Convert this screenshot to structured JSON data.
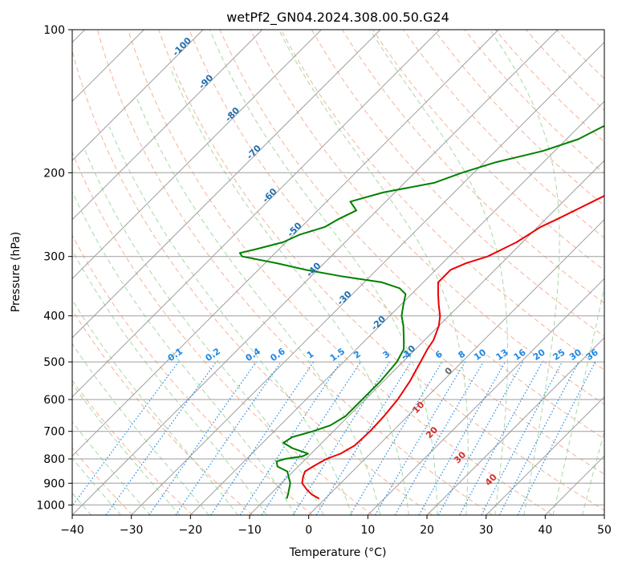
{
  "chart_data": {
    "type": "line",
    "title": "wetPf2_GN04.2024.308.00.50.G24",
    "xlabel": "Temperature (°C)",
    "ylabel": "Pressure (hPa)",
    "xlim": [
      -40,
      50
    ],
    "ylim": [
      1050,
      100
    ],
    "y_scale": "log",
    "x_ticks": [
      -40,
      -30,
      -20,
      -10,
      0,
      10,
      20,
      30,
      40,
      50
    ],
    "y_ticks": [
      100,
      200,
      300,
      400,
      500,
      600,
      700,
      800,
      900,
      1000
    ],
    "grid": true,
    "skew": true,
    "colors": {
      "temperature": "#ee0000",
      "dewpoint": "#008000",
      "isotherm_label": "#1f6fb0",
      "mixing_ratio": "#1e88e5",
      "dry_adiabat": "#f4a582",
      "moist_adiabat": "#8fcf8f",
      "theta_e_label": "#d32f2f"
    },
    "series": [
      {
        "key": "temperature",
        "pressure": [
          970,
          950,
          930,
          900,
          870,
          850,
          830,
          800,
          780,
          750,
          700,
          650,
          600,
          550,
          500,
          470,
          450,
          420,
          400,
          380,
          360,
          340,
          320,
          310,
          300,
          280,
          260,
          250,
          230,
          200,
          180,
          160,
          150,
          140,
          130,
          120,
          110,
          100
        ],
        "temperature": [
          -1.0,
          -3.0,
          -4.5,
          -6.5,
          -7.5,
          -8.0,
          -7.5,
          -6.5,
          -5.0,
          -4.0,
          -3.8,
          -4.0,
          -4.5,
          -5.5,
          -7.0,
          -8.0,
          -8.5,
          -10.0,
          -11.5,
          -13.5,
          -15.5,
          -17.5,
          -17.5,
          -16.0,
          -13.5,
          -11.0,
          -9.5,
          -8.0,
          -5.0,
          0.0,
          3.0,
          8.0,
          10.5,
          13.5,
          16.5,
          20.0,
          25.5,
          31.0
        ]
      },
      {
        "key": "dewpoint",
        "pressure": [
          970,
          950,
          900,
          870,
          850,
          830,
          810,
          800,
          790,
          780,
          760,
          740,
          720,
          700,
          680,
          650,
          600,
          550,
          500,
          470,
          450,
          420,
          400,
          380,
          360,
          350,
          340,
          330,
          320,
          310,
          300,
          295,
          290,
          280,
          270,
          260,
          250,
          240,
          230,
          220,
          210,
          200,
          190,
          180,
          170,
          160,
          150,
          140,
          130,
          120,
          110,
          100
        ],
        "dewpoint": [
          -6.5,
          -7.0,
          -8.5,
          -10.0,
          -11.0,
          -13.5,
          -14.5,
          -13.5,
          -11.0,
          -10.5,
          -14.0,
          -16.5,
          -16.0,
          -13.5,
          -11.5,
          -10.5,
          -10.5,
          -10.5,
          -11.0,
          -12.0,
          -13.5,
          -16.0,
          -18.0,
          -19.5,
          -21.0,
          -23.0,
          -27.0,
          -35.0,
          -42.0,
          -48.0,
          -55.0,
          -56.0,
          -54.0,
          -50.5,
          -49.0,
          -46.0,
          -45.0,
          -43.5,
          -46.0,
          -42.0,
          -35.0,
          -32.0,
          -28.0,
          -22.0,
          -18.0,
          -16.0,
          -13.0,
          -8.0,
          -3.0,
          2.0,
          6.5,
          12.5
        ]
      }
    ],
    "isotherm_labels": [
      "-100",
      "-90",
      "-80",
      "-70",
      "-60",
      "-50",
      "-40",
      "-30",
      "-20",
      "-10",
      "0",
      "10",
      "20",
      "30",
      "40"
    ],
    "mixing_ratio_labels": [
      "0.1",
      "0.2",
      "0.4",
      "0.6",
      "1",
      "1.5",
      "2",
      "3",
      "4",
      "6",
      "8",
      "10",
      "13",
      "16",
      "20",
      "25",
      "30",
      "36"
    ]
  }
}
